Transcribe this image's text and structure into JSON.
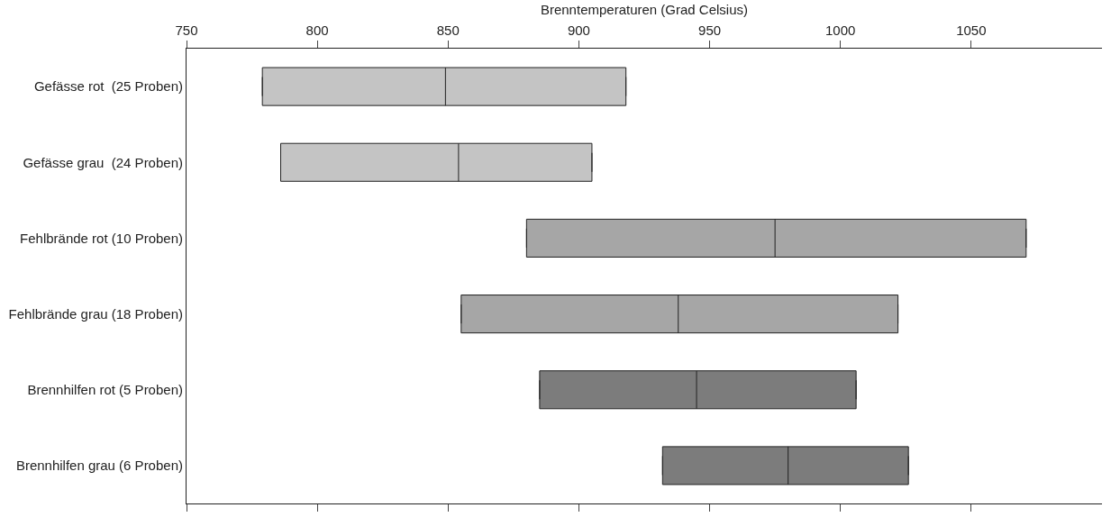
{
  "chart_data": {
    "type": "box",
    "orientation": "horizontal",
    "xlabel": "Brenntemperaturen (Grad Celsius)",
    "categories": [
      "Gefässe rot  (25 Proben)",
      "Gefässe grau  (24 Proben)",
      "Fehlbrände rot (10 Proben)",
      "Fehlbrände grau (18 Proben)",
      "Brennhilfen rot (5 Proben)",
      "Brennhilfen grau (6 Proben)"
    ],
    "boxes": [
      {
        "low": 779,
        "q1": 779,
        "median": 849,
        "q3": 918,
        "high": 918
      },
      {
        "low": 786,
        "q1": 786,
        "median": 854,
        "q3": 905,
        "high": 905
      },
      {
        "low": 880,
        "q1": 880,
        "median": 975,
        "q3": 1071,
        "high": 1071
      },
      {
        "low": 855,
        "q1": 855,
        "median": 938,
        "q3": 1022,
        "high": 1022
      },
      {
        "low": 885,
        "q1": 885,
        "median": 945,
        "q3": 1006,
        "high": 1006
      },
      {
        "low": 932,
        "q1": 932,
        "median": 980,
        "q3": 1026,
        "high": 1026
      }
    ],
    "colors": [
      "#c4c4c4",
      "#c4c4c4",
      "#a6a6a6",
      "#a6a6a6",
      "#7c7c7c",
      "#7c7c7c"
    ],
    "xlim": [
      750,
      1100
    ],
    "xticks": [
      750,
      800,
      850,
      900,
      950,
      1000,
      1050
    ],
    "grid": false
  }
}
